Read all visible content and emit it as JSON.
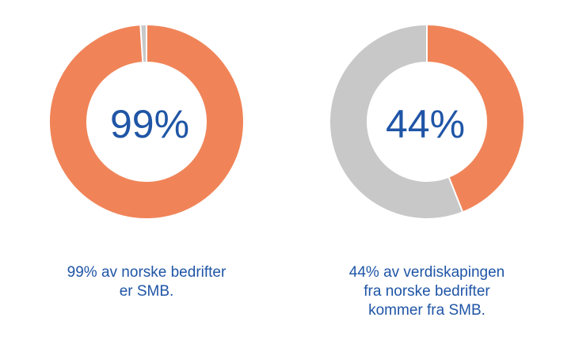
{
  "colors": {
    "share": "#f08458",
    "remainder": "#c8c8c8",
    "text": "#1f55a6"
  },
  "chart_data": [
    {
      "type": "pie",
      "variant": "donut",
      "center_label": "99%",
      "slices": [
        {
          "label": "SMB",
          "value": 99,
          "color": "#f08458"
        },
        {
          "label": "",
          "value": 1,
          "color": "#c8c8c8"
        }
      ],
      "caption_lines": [
        "99% av norske bedrifter",
        "er SMB."
      ]
    },
    {
      "type": "pie",
      "variant": "donut",
      "center_label": "44%",
      "slices": [
        {
          "label": "SMB",
          "value": 44,
          "color": "#f08458"
        },
        {
          "label": "",
          "value": 56,
          "color": "#c8c8c8"
        }
      ],
      "caption_lines": [
        "44% av verdiskapingen",
        "fra norske bedrifter",
        "kommer fra SMB."
      ]
    }
  ]
}
